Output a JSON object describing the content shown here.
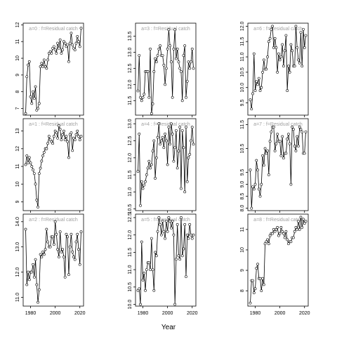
{
  "figure": {
    "xlabel": "Year"
  },
  "chart_data": [
    {
      "type": "line",
      "title": "a=0 : f=Residual catch",
      "ylim": [
        6.6,
        12.1
      ],
      "yticks": [
        7,
        8,
        9,
        10,
        11,
        12
      ],
      "x": [
        1976,
        1977,
        1978,
        1979,
        1980,
        1981,
        1982,
        1983,
        1984,
        1985,
        1986,
        1987,
        1988,
        1989,
        1990,
        1991,
        1992,
        1993,
        1994,
        1995,
        1996,
        1997,
        1998,
        1999,
        2000,
        2001,
        2002,
        2003,
        2004,
        2005,
        2006,
        2007,
        2008,
        2009,
        2010,
        2011,
        2012,
        2013,
        2014,
        2015,
        2016,
        2017,
        2018,
        2019,
        2020,
        2021
      ],
      "values": [
        6.7,
        8.9,
        9.6,
        9.8,
        7.7,
        7.3,
        8.0,
        7.6,
        8.3,
        6.9,
        7.0,
        7.3,
        9.5,
        9.7,
        9.5,
        9.9,
        9.5,
        9.4,
        9.9,
        10.3,
        10.4,
        10.3,
        10.6,
        10.7,
        10.5,
        10.3,
        10.9,
        10.6,
        11.1,
        10.3,
        10.5,
        11.0,
        10.9,
        10.7,
        10.8,
        9.8,
        10.9,
        11.5,
        10.8,
        10.6,
        10.5,
        10.9,
        11.3,
        11.0,
        10.7,
        11.8
      ]
    },
    {
      "type": "line",
      "title": "a=1 : f=Residual catch",
      "ylim": [
        8.5,
        13.7
      ],
      "yticks": [
        9,
        10,
        11,
        12,
        13
      ],
      "x": [
        1976,
        1977,
        1978,
        1979,
        1980,
        1981,
        1982,
        1983,
        1984,
        1985,
        1986,
        1987,
        1988,
        1989,
        1990,
        1991,
        1992,
        1993,
        1994,
        1995,
        1996,
        1997,
        1998,
        1999,
        2000,
        2001,
        2002,
        2003,
        2004,
        2005,
        2006,
        2007,
        2008,
        2009,
        2010,
        2011,
        2012,
        2013,
        2014,
        2015,
        2016,
        2017,
        2018,
        2019,
        2020,
        2021
      ],
      "values": [
        11.1,
        11.6,
        11.2,
        11.5,
        11.2,
        11.0,
        10.8,
        10.6,
        10.0,
        9.1,
        8.7,
        10.6,
        10.9,
        11.3,
        11.6,
        11.8,
        12.0,
        12.0,
        12.3,
        12.7,
        12.5,
        12.4,
        12.3,
        12.7,
        13.0,
        12.9,
        12.6,
        13.3,
        13.1,
        12.5,
        12.8,
        13.0,
        12.5,
        12.7,
        12.4,
        11.5,
        12.8,
        12.9,
        11.9,
        12.6,
        12.5,
        12.8,
        13.0,
        12.7,
        12.5,
        12.7
      ]
    },
    {
      "type": "line",
      "title": "a=2 : f=Residual catch",
      "ylim": [
        10.65,
        14.3
      ],
      "yticks": [
        11.0,
        12.0,
        13.0,
        14.0
      ],
      "x": [
        1976,
        1977,
        1978,
        1979,
        1980,
        1981,
        1982,
        1983,
        1984,
        1985,
        1986,
        1987,
        1988,
        1989,
        1990,
        1991,
        1992,
        1993,
        1994,
        1995,
        1996,
        1997,
        1998,
        1999,
        2000,
        2001,
        2002,
        2003,
        2004,
        2005,
        2006,
        2007,
        2008,
        2009,
        2010,
        2011,
        2012,
        2013,
        2014,
        2015,
        2016,
        2017,
        2018,
        2019,
        2020,
        2021
      ],
      "values": [
        13.7,
        11.5,
        12.0,
        11.7,
        12.0,
        12.0,
        12.3,
        11.8,
        12.5,
        11.5,
        10.8,
        11.3,
        12.7,
        12.6,
        12.8,
        12.7,
        12.9,
        13.7,
        13.2,
        13.0,
        13.0,
        13.4,
        13.4,
        13.1,
        14.0,
        13.5,
        12.9,
        12.6,
        13.6,
        12.8,
        12.9,
        12.6,
        11.8,
        13.5,
        13.4,
        11.9,
        13.0,
        13.5,
        12.8,
        12.6,
        12.5,
        13.2,
        13.5,
        12.9,
        12.3,
        13.6
      ]
    },
    {
      "type": "line",
      "title": "a=3 : f=Residual catch",
      "ylim": [
        11.05,
        13.9
      ],
      "yticks": [
        11.5,
        12.0,
        12.5,
        13.0,
        13.5
      ],
      "x": [
        1976,
        1977,
        1978,
        1979,
        1980,
        1981,
        1982,
        1983,
        1984,
        1985,
        1986,
        1987,
        1988,
        1989,
        1990,
        1991,
        1992,
        1993,
        1994,
        1995,
        1996,
        1997,
        1998,
        1999,
        2000,
        2001,
        2002,
        2003,
        2004,
        2005,
        2006,
        2007,
        2008,
        2009,
        2010,
        2011,
        2012,
        2013,
        2014,
        2015,
        2016,
        2017,
        2018,
        2019,
        2020,
        2021
      ],
      "values": [
        11.8,
        12.9,
        11.6,
        11.5,
        11.6,
        11.7,
        12.4,
        12.4,
        12.4,
        11.6,
        13.1,
        11.1,
        11.4,
        12.4,
        12.8,
        12.7,
        12.9,
        13.1,
        13.2,
        12.9,
        12.9,
        12.6,
        12.0,
        12.5,
        13.1,
        13.7,
        13.2,
        12.7,
        11.6,
        13.1,
        13.7,
        12.8,
        13.1,
        12.7,
        12.5,
        12.4,
        11.5,
        12.9,
        13.2,
        11.6,
        12.1,
        12.7,
        12.5,
        12.7,
        13.1,
        12.5
      ]
    },
    {
      "type": "line",
      "title": "a=4 : f=Residual catch",
      "ylim": [
        10.45,
        13.15
      ],
      "yticks": [
        10.5,
        11.0,
        11.5,
        12.0,
        12.5,
        13.0
      ],
      "x": [
        1976,
        1977,
        1978,
        1979,
        1980,
        1981,
        1982,
        1983,
        1984,
        1985,
        1986,
        1987,
        1988,
        1989,
        1990,
        1991,
        1992,
        1993,
        1994,
        1995,
        1996,
        1997,
        1998,
        1999,
        2000,
        2001,
        2002,
        2003,
        2004,
        2005,
        2006,
        2007,
        2008,
        2009,
        2010,
        2011,
        2012,
        2013,
        2014,
        2015,
        2016,
        2017,
        2018,
        2019,
        2020,
        2021
      ],
      "values": [
        11.6,
        12.7,
        10.6,
        11.3,
        11.1,
        11.2,
        11.3,
        11.5,
        11.7,
        11.9,
        11.7,
        11.8,
        12.2,
        12.5,
        11.4,
        12.0,
        12.6,
        13.0,
        12.4,
        12.5,
        12.6,
        12.3,
        12.7,
        12.5,
        11.8,
        12.9,
        12.4,
        13.0,
        12.7,
        11.9,
        12.3,
        12.8,
        11.7,
        12.2,
        12.9,
        11.1,
        12.8,
        12.3,
        11.0,
        12.9,
        11.3,
        12.0,
        12.1,
        12.5,
        12.9,
        12.4
      ]
    },
    {
      "type": "line",
      "title": "a=5 : f=Residual catch",
      "ylim": [
        9.95,
        12.6
      ],
      "yticks": [
        10.0,
        10.5,
        11.0,
        11.5,
        12.0,
        12.5
      ],
      "x": [
        1976,
        1977,
        1978,
        1979,
        1980,
        1981,
        1982,
        1983,
        1984,
        1985,
        1986,
        1987,
        1988,
        1989,
        1990,
        1991,
        1992,
        1993,
        1994,
        1995,
        1996,
        1997,
        1998,
        1999,
        2000,
        2001,
        2002,
        2003,
        2004,
        2005,
        2006,
        2007,
        2008,
        2009,
        2010,
        2011,
        2012,
        2013,
        2014,
        2015,
        2016,
        2017,
        2018,
        2019,
        2020,
        2021
      ],
      "values": [
        10.4,
        10.45,
        10.0,
        11.8,
        10.7,
        10.9,
        10.4,
        11.0,
        11.2,
        11.2,
        11.0,
        11.9,
        11.0,
        10.4,
        11.5,
        11.4,
        12.1,
        12.5,
        12.3,
        12.0,
        12.4,
        12.1,
        11.9,
        12.4,
        12.1,
        12.5,
        12.4,
        12.2,
        12.4,
        12.0,
        10.0,
        11.3,
        12.3,
        11.4,
        11.3,
        12.5,
        11.4,
        11.6,
        12.3,
        10.8,
        12.0,
        11.9,
        12.3,
        12.0,
        11.9,
        12.0
      ]
    },
    {
      "type": "line",
      "title": "a=6 : f=Residual catch",
      "ylim": [
        9.1,
        12.1
      ],
      "yticks": [
        9.5,
        10.0,
        10.5,
        11.0,
        11.5,
        12.0
      ],
      "x": [
        1976,
        1977,
        1978,
        1979,
        1980,
        1981,
        1982,
        1983,
        1984,
        1985,
        1986,
        1987,
        1988,
        1989,
        1990,
        1991,
        1992,
        1993,
        1994,
        1995,
        1996,
        1997,
        1998,
        1999,
        2000,
        2001,
        2002,
        2003,
        2004,
        2005,
        2006,
        2007,
        2008,
        2009,
        2010,
        2011,
        2012,
        2013,
        2014,
        2015,
        2016,
        2017,
        2018,
        2019,
        2020,
        2021
      ],
      "values": [
        9.6,
        9.3,
        9.8,
        11.1,
        9.9,
        10.2,
        10.1,
        10.3,
        9.9,
        10.0,
        10.5,
        10.9,
        10.6,
        10.6,
        11.0,
        11.5,
        11.6,
        11.9,
        12.0,
        11.3,
        11.6,
        11.3,
        10.5,
        11.1,
        10.9,
        11.0,
        11.4,
        10.7,
        11.2,
        11.7,
        9.9,
        10.7,
        10.5,
        11.4,
        11.2,
        10.7,
        10.7,
        12.0,
        11.3,
        10.9,
        10.8,
        11.8,
        10.7,
        11.9,
        11.3,
        11.7
      ]
    },
    {
      "type": "line",
      "title": "a=7 : f=Residual catch",
      "ylim": [
        7.9,
        11.75
      ],
      "yticks": [
        8.0,
        8.5,
        9.0,
        9.5,
        10.5,
        11.5
      ],
      "x": [
        1976,
        1977,
        1978,
        1979,
        1980,
        1981,
        1982,
        1983,
        1984,
        1985,
        1986,
        1987,
        1988,
        1989,
        1990,
        1991,
        1992,
        1993,
        1994,
        1995,
        1996,
        1997,
        1998,
        1999,
        2000,
        2001,
        2002,
        2003,
        2004,
        2005,
        2006,
        2007,
        2008,
        2009,
        2010,
        2011,
        2012,
        2013,
        2014,
        2015,
        2016,
        2017,
        2018,
        2019,
        2020,
        2021
      ],
      "values": [
        9.6,
        8.0,
        8.9,
        8.8,
        9.0,
        10.0,
        9.6,
        8.8,
        8.5,
        9.0,
        10.2,
        9.8,
        10.5,
        10.3,
        10.4,
        9.4,
        10.8,
        11.2,
        11.4,
        11.4,
        10.4,
        10.7,
        11.1,
        10.8,
        10.8,
        10.2,
        11.0,
        10.1,
        10.3,
        10.3,
        10.9,
        11.1,
        10.7,
        9.0,
        11.4,
        11.3,
        10.6,
        10.4,
        11.0,
        10.6,
        11.4,
        11.3,
        11.2,
        10.3,
        10.3,
        11.2
      ]
    },
    {
      "type": "line",
      "title": "a=8 : f=Residual catch",
      "ylim": [
        7.25,
        11.75
      ],
      "yticks": [
        8.0,
        9.0,
        10.0,
        11.0
      ],
      "x": [
        1976,
        1977,
        1978,
        1979,
        1980,
        1981,
        1982,
        1983,
        1984,
        1985,
        1986,
        1987,
        1988,
        1989,
        1990,
        1991,
        1992,
        1993,
        1994,
        1995,
        1996,
        1997,
        1998,
        1999,
        2000,
        2001,
        2002,
        2003,
        2004,
        2005,
        2006,
        2007,
        2008,
        2009,
        2010,
        2011,
        2012,
        2013,
        2014,
        2015,
        2016,
        2017,
        2018,
        2019,
        2020,
        2021
      ],
      "values": [
        7.4,
        8.5,
        8.5,
        7.9,
        8.1,
        9.1,
        9.3,
        8.6,
        8.6,
        8.0,
        8.6,
        8.3,
        10.3,
        10.4,
        10.5,
        10.3,
        10.7,
        10.8,
        10.8,
        11.0,
        10.9,
        11.0,
        11.1,
        10.7,
        10.8,
        11.1,
        10.9,
        10.8,
        10.6,
        10.9,
        10.5,
        10.3,
        10.4,
        10.4,
        10.6,
        10.6,
        10.9,
        11.1,
        11.0,
        11.4,
        11.0,
        11.6,
        11.1,
        11.5,
        11.3,
        11.4
      ]
    }
  ]
}
